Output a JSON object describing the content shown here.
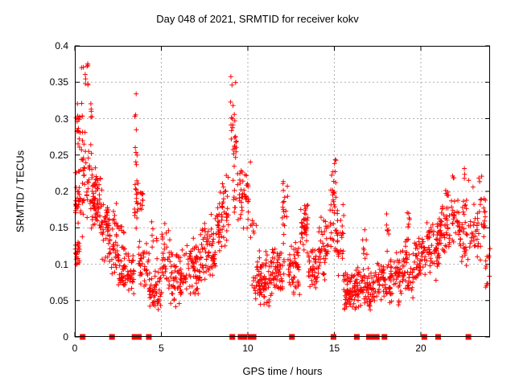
{
  "chart_data": {
    "type": "scatter",
    "title": "Day 048 of 2021, SRMTID for receiver kokv",
    "xlabel": "GPS time / hours",
    "ylabel": "SRMTID / TECUs",
    "xlim": [
      0,
      24
    ],
    "ylim": [
      0,
      0.4
    ],
    "xticks": [
      {
        "label": "0",
        "value": 0
      },
      {
        "label": "5",
        "value": 5
      },
      {
        "label": "10",
        "value": 10
      },
      {
        "label": "15",
        "value": 15
      },
      {
        "label": "20",
        "value": 20
      }
    ],
    "yticks": [
      {
        "label": "0",
        "value": 0
      },
      {
        "label": "0.05",
        "value": 0.05
      },
      {
        "label": "0.1",
        "value": 0.1
      },
      {
        "label": "0.15",
        "value": 0.15
      },
      {
        "label": "0.2",
        "value": 0.2
      },
      {
        "label": "0.25",
        "value": 0.25
      },
      {
        "label": "0.3",
        "value": 0.3
      },
      {
        "label": "0.35",
        "value": 0.35
      },
      {
        "label": "0.4",
        "value": 0.4
      }
    ],
    "grid": true,
    "grid_color": "#b0b0b0",
    "legend": "none",
    "marker_color": "#ff0000",
    "series": [
      {
        "name": "srmtid-points",
        "marker": "plus",
        "color": "#ff0000",
        "seed": 48,
        "bins_format": [
          "x_start_hours",
          "x_end_hours",
          "y_min_tecu",
          "y_max_tecu",
          "y_mode_tecu",
          "count"
        ],
        "bins": [
          [
            0.02,
            0.3,
            0.09,
            0.145,
            0.115,
            22
          ],
          [
            0.02,
            0.35,
            0.15,
            0.25,
            0.19,
            30
          ],
          [
            0.05,
            0.45,
            0.25,
            0.34,
            0.29,
            20
          ],
          [
            0.3,
            0.8,
            0.335,
            0.385,
            0.35,
            10
          ],
          [
            0.35,
            1.0,
            0.13,
            0.3,
            0.215,
            45
          ],
          [
            0.8,
            1.05,
            0.295,
            0.335,
            0.31,
            5
          ],
          [
            1.0,
            1.5,
            0.13,
            0.25,
            0.185,
            60
          ],
          [
            1.5,
            2.0,
            0.1,
            0.21,
            0.15,
            48
          ],
          [
            2.0,
            2.5,
            0.075,
            0.185,
            0.125,
            40
          ],
          [
            2.5,
            3.1,
            0.055,
            0.13,
            0.085,
            45
          ],
          [
            2.55,
            2.9,
            0.13,
            0.165,
            0.145,
            6
          ],
          [
            3.1,
            3.45,
            0.05,
            0.12,
            0.08,
            25
          ],
          [
            3.45,
            3.65,
            0.12,
            0.355,
            0.2,
            22
          ],
          [
            3.55,
            3.95,
            0.165,
            0.225,
            0.195,
            18
          ],
          [
            3.7,
            4.3,
            0.06,
            0.15,
            0.1,
            35
          ],
          [
            4.3,
            5.0,
            0.035,
            0.1,
            0.06,
            50
          ],
          [
            4.4,
            4.75,
            0.1,
            0.17,
            0.125,
            8
          ],
          [
            5.0,
            5.6,
            0.04,
            0.17,
            0.1,
            40
          ],
          [
            5.6,
            6.4,
            0.04,
            0.13,
            0.08,
            55
          ],
          [
            6.4,
            7.2,
            0.05,
            0.15,
            0.09,
            60
          ],
          [
            7.2,
            8.2,
            0.06,
            0.18,
            0.12,
            75
          ],
          [
            8.2,
            8.9,
            0.1,
            0.235,
            0.165,
            55
          ],
          [
            9.0,
            9.35,
            0.17,
            0.395,
            0.27,
            30
          ],
          [
            9.2,
            9.7,
            0.13,
            0.25,
            0.19,
            25
          ],
          [
            9.7,
            10.15,
            0.13,
            0.26,
            0.19,
            22
          ],
          [
            10.15,
            10.5,
            0.13,
            0.17,
            0.15,
            8
          ],
          [
            10.2,
            10.55,
            0.04,
            0.095,
            0.065,
            10
          ],
          [
            10.5,
            11.3,
            0.04,
            0.12,
            0.075,
            70
          ],
          [
            11.3,
            12.1,
            0.05,
            0.135,
            0.09,
            65
          ],
          [
            11.9,
            12.3,
            0.13,
            0.225,
            0.17,
            18
          ],
          [
            12.3,
            13.0,
            0.055,
            0.145,
            0.095,
            55
          ],
          [
            13.0,
            13.5,
            0.09,
            0.2,
            0.15,
            40
          ],
          [
            13.5,
            14.1,
            0.06,
            0.135,
            0.095,
            45
          ],
          [
            14.1,
            14.65,
            0.07,
            0.19,
            0.12,
            40
          ],
          [
            14.75,
            15.1,
            0.1,
            0.265,
            0.17,
            35
          ],
          [
            15.1,
            15.55,
            0.08,
            0.2,
            0.13,
            30
          ],
          [
            15.55,
            16.35,
            0.035,
            0.095,
            0.06,
            75
          ],
          [
            16.35,
            17.1,
            0.035,
            0.1,
            0.065,
            60
          ],
          [
            16.6,
            16.9,
            0.1,
            0.155,
            0.12,
            8
          ],
          [
            17.1,
            17.9,
            0.04,
            0.11,
            0.07,
            55
          ],
          [
            17.9,
            18.8,
            0.04,
            0.12,
            0.08,
            65
          ],
          [
            18.0,
            18.15,
            0.13,
            0.19,
            0.155,
            6
          ],
          [
            18.8,
            19.6,
            0.05,
            0.14,
            0.09,
            55
          ],
          [
            19.2,
            19.45,
            0.14,
            0.185,
            0.16,
            7
          ],
          [
            19.6,
            20.3,
            0.07,
            0.15,
            0.105,
            50
          ],
          [
            20.3,
            21.0,
            0.075,
            0.165,
            0.115,
            55
          ],
          [
            21.0,
            21.7,
            0.09,
            0.19,
            0.14,
            55
          ],
          [
            21.3,
            21.6,
            0.19,
            0.215,
            0.2,
            6
          ],
          [
            21.75,
            22.2,
            0.11,
            0.245,
            0.17,
            30
          ],
          [
            22.2,
            22.85,
            0.09,
            0.2,
            0.14,
            40
          ],
          [
            22.3,
            22.8,
            0.205,
            0.24,
            0.22,
            4
          ],
          [
            22.85,
            23.3,
            0.1,
            0.21,
            0.15,
            25
          ],
          [
            23.3,
            23.75,
            0.1,
            0.24,
            0.17,
            25
          ],
          [
            23.75,
            24.0,
            0.035,
            0.13,
            0.08,
            12
          ]
        ]
      },
      {
        "name": "baseline-squares",
        "marker": "filled-square",
        "color": "#ff0000",
        "y": 0,
        "x": [
          0.45,
          2.15,
          3.45,
          3.7,
          4.28,
          9.1,
          9.58,
          9.8,
          10.15,
          10.33,
          12.55,
          14.95,
          16.3,
          17.0,
          17.25,
          17.45,
          17.9,
          20.2,
          21.0,
          22.75
        ]
      }
    ]
  }
}
